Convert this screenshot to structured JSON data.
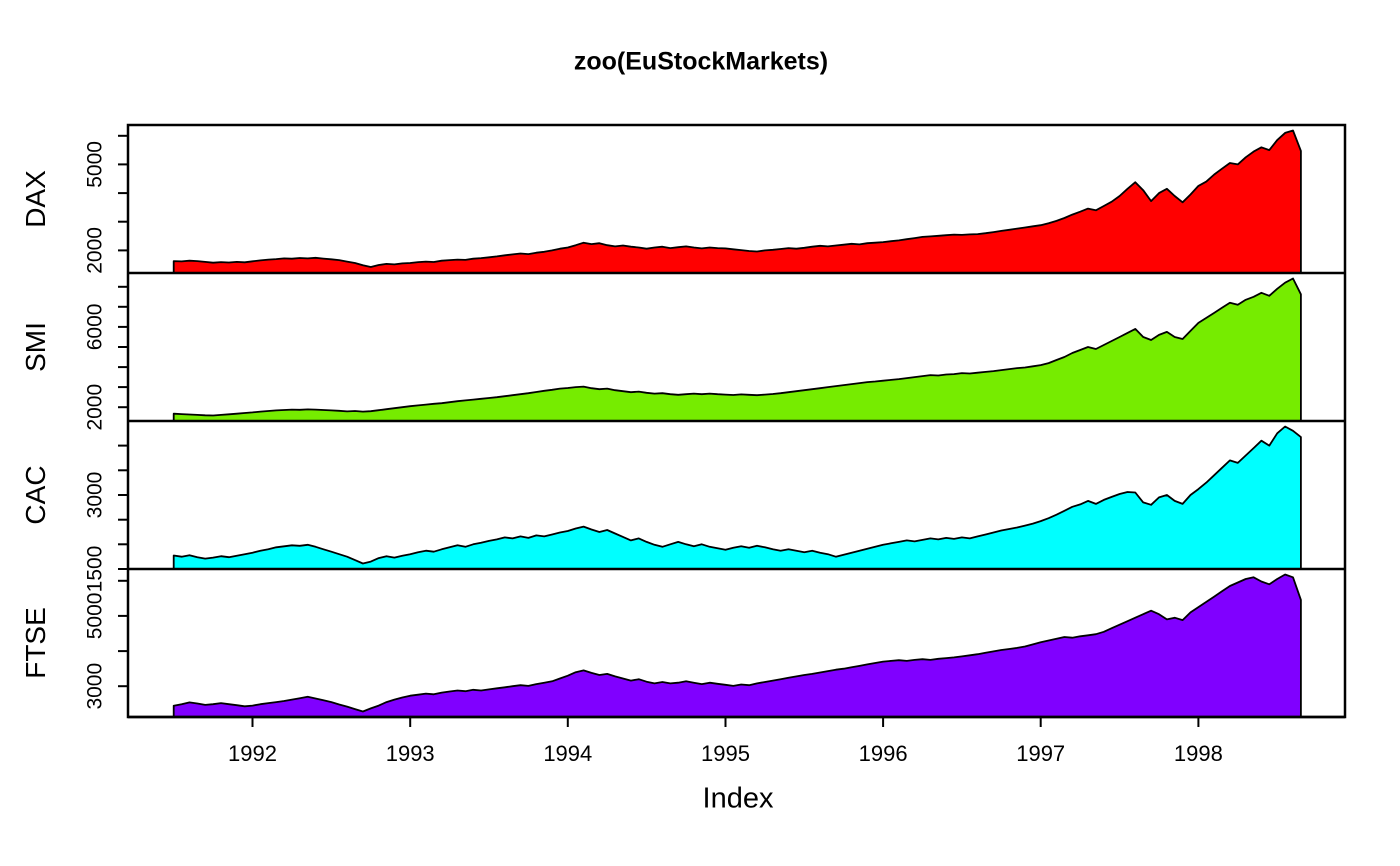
{
  "figure": {
    "title": "zoo(EuStockMarkets)",
    "x_axis_title": "Index",
    "background": "#FFFFFF",
    "line_color": "#000000"
  },
  "chart_data": {
    "type": "area",
    "title": "zoo(EuStockMarkets)",
    "xlabel": "Index",
    "grid": false,
    "legend_position": "none",
    "x_start": 1991.5,
    "x_step": 0.05,
    "xlim": [
      1991.21,
      1998.93
    ],
    "x_ticks": [
      1992,
      1993,
      1994,
      1995,
      1996,
      1997,
      1998
    ],
    "panels": [
      {
        "name": "DAX",
        "color": "#FF0000",
        "ylim": [
          1211,
          6377
        ],
        "yticks": [
          2000,
          3000,
          4000,
          5000,
          6000
        ],
        "ytick_labels_shown": [
          2000,
          5000
        ],
        "values": [
          1628,
          1615,
          1640,
          1625,
          1600,
          1570,
          1590,
          1578,
          1600,
          1585,
          1620,
          1650,
          1680,
          1695,
          1720,
          1710,
          1735,
          1720,
          1740,
          1715,
          1690,
          1660,
          1610,
          1560,
          1480,
          1420,
          1490,
          1530,
          1510,
          1545,
          1560,
          1590,
          1610,
          1595,
          1640,
          1660,
          1680,
          1670,
          1710,
          1730,
          1760,
          1790,
          1830,
          1860,
          1890,
          1870,
          1920,
          1950,
          2000,
          2060,
          2100,
          2180,
          2270,
          2220,
          2250,
          2180,
          2140,
          2170,
          2130,
          2100,
          2060,
          2100,
          2130,
          2080,
          2110,
          2140,
          2100,
          2070,
          2100,
          2080,
          2070,
          2040,
          2010,
          1980,
          1960,
          2000,
          2020,
          2050,
          2080,
          2060,
          2090,
          2130,
          2160,
          2140,
          2170,
          2200,
          2230,
          2210,
          2250,
          2270,
          2290,
          2320,
          2350,
          2390,
          2430,
          2470,
          2490,
          2510,
          2530,
          2550,
          2540,
          2560,
          2570,
          2600,
          2640,
          2680,
          2720,
          2760,
          2800,
          2840,
          2880,
          2950,
          3030,
          3130,
          3250,
          3350,
          3460,
          3400,
          3550,
          3700,
          3900,
          4150,
          4380,
          4100,
          3720,
          4000,
          4150,
          3900,
          3680,
          3950,
          4250,
          4400,
          4650,
          4850,
          5050,
          5000,
          5250,
          5450,
          5600,
          5500,
          5850,
          6100,
          6186,
          5474
        ]
      },
      {
        "name": "SMI",
        "color": "#76EC00",
        "ylim": [
          1314,
          8685
        ],
        "yticks": [
          2000,
          3000,
          4000,
          5000,
          6000,
          7000,
          8000
        ],
        "ytick_labels_shown": [
          2000,
          6000
        ],
        "values": [
          1678,
          1660,
          1640,
          1620,
          1600,
          1590,
          1620,
          1650,
          1680,
          1710,
          1740,
          1780,
          1810,
          1840,
          1860,
          1880,
          1870,
          1890,
          1880,
          1860,
          1840,
          1820,
          1790,
          1810,
          1780,
          1800,
          1850,
          1900,
          1950,
          2000,
          2050,
          2090,
          2130,
          2170,
          2200,
          2250,
          2300,
          2340,
          2380,
          2420,
          2460,
          2500,
          2550,
          2600,
          2650,
          2700,
          2760,
          2820,
          2870,
          2930,
          2960,
          3000,
          3025,
          2950,
          2900,
          2930,
          2850,
          2800,
          2750,
          2780,
          2720,
          2680,
          2700,
          2650,
          2620,
          2650,
          2680,
          2650,
          2680,
          2650,
          2630,
          2610,
          2640,
          2620,
          2600,
          2630,
          2660,
          2700,
          2750,
          2800,
          2850,
          2900,
          2950,
          3000,
          3050,
          3100,
          3150,
          3200,
          3250,
          3280,
          3320,
          3360,
          3400,
          3450,
          3500,
          3550,
          3600,
          3580,
          3630,
          3650,
          3700,
          3680,
          3720,
          3760,
          3800,
          3850,
          3900,
          3950,
          3980,
          4040,
          4100,
          4200,
          4350,
          4500,
          4700,
          4850,
          5000,
          4900,
          5100,
          5300,
          5500,
          5700,
          5900,
          5500,
          5350,
          5600,
          5750,
          5500,
          5400,
          5800,
          6200,
          6450,
          6700,
          6950,
          7200,
          7100,
          7350,
          7500,
          7700,
          7550,
          7900,
          8200,
          8412,
          7625
        ]
      },
      {
        "name": "CAC",
        "color": "#00FFFF",
        "ylim": [
          1500,
          4499
        ],
        "yticks": [
          1500,
          2000,
          2500,
          3000,
          3500,
          4000
        ],
        "ytick_labels_shown": [
          1500,
          3000
        ],
        "values": [
          1773,
          1750,
          1780,
          1740,
          1710,
          1730,
          1760,
          1740,
          1770,
          1800,
          1830,
          1870,
          1900,
          1940,
          1960,
          1980,
          1970,
          1990,
          1950,
          1900,
          1850,
          1800,
          1750,
          1680,
          1611,
          1650,
          1720,
          1760,
          1730,
          1770,
          1800,
          1840,
          1870,
          1850,
          1900,
          1940,
          1980,
          1950,
          2000,
          2030,
          2070,
          2100,
          2140,
          2120,
          2160,
          2130,
          2180,
          2160,
          2200,
          2240,
          2270,
          2320,
          2360,
          2300,
          2250,
          2290,
          2220,
          2150,
          2080,
          2120,
          2050,
          1990,
          1950,
          2000,
          2050,
          2000,
          1960,
          2000,
          1950,
          1920,
          1890,
          1930,
          1960,
          1930,
          1970,
          1940,
          1900,
          1870,
          1900,
          1870,
          1840,
          1870,
          1830,
          1800,
          1750,
          1790,
          1830,
          1870,
          1910,
          1950,
          1990,
          2020,
          2050,
          2080,
          2060,
          2090,
          2120,
          2100,
          2130,
          2110,
          2140,
          2120,
          2160,
          2200,
          2240,
          2280,
          2310,
          2340,
          2380,
          2420,
          2470,
          2530,
          2600,
          2680,
          2760,
          2810,
          2880,
          2820,
          2900,
          2960,
          3020,
          3060,
          3050,
          2850,
          2800,
          2950,
          3000,
          2880,
          2820,
          3000,
          3120,
          3250,
          3400,
          3550,
          3700,
          3650,
          3800,
          3950,
          4100,
          4000,
          4250,
          4388,
          4300,
          4172
        ]
      },
      {
        "name": "FTSE",
        "color": "#8000FF",
        "ylim": [
          2125,
          6335
        ],
        "yticks": [
          3000,
          4000,
          5000,
          6000
        ],
        "ytick_labels_shown": [
          3000,
          5000
        ],
        "values": [
          2444,
          2490,
          2540,
          2510,
          2470,
          2490,
          2520,
          2490,
          2460,
          2430,
          2450,
          2490,
          2520,
          2550,
          2580,
          2620,
          2660,
          2700,
          2650,
          2600,
          2550,
          2480,
          2420,
          2350,
          2281,
          2370,
          2450,
          2550,
          2620,
          2680,
          2730,
          2760,
          2790,
          2770,
          2820,
          2850,
          2880,
          2860,
          2900,
          2880,
          2910,
          2940,
          2970,
          3000,
          3030,
          3010,
          3060,
          3100,
          3140,
          3220,
          3300,
          3400,
          3450,
          3380,
          3320,
          3350,
          3280,
          3220,
          3160,
          3200,
          3130,
          3080,
          3120,
          3080,
          3100,
          3140,
          3100,
          3060,
          3100,
          3070,
          3040,
          3010,
          3050,
          3030,
          3080,
          3120,
          3160,
          3200,
          3240,
          3280,
          3320,
          3350,
          3390,
          3430,
          3470,
          3500,
          3540,
          3580,
          3620,
          3660,
          3700,
          3720,
          3740,
          3720,
          3750,
          3770,
          3750,
          3780,
          3800,
          3820,
          3850,
          3880,
          3910,
          3950,
          3990,
          4030,
          4060,
          4090,
          4130,
          4190,
          4250,
          4300,
          4350,
          4400,
          4380,
          4420,
          4450,
          4480,
          4550,
          4650,
          4750,
          4850,
          4950,
          5050,
          5150,
          5050,
          4900,
          4950,
          4880,
          5100,
          5250,
          5400,
          5550,
          5700,
          5850,
          5950,
          6050,
          6100,
          5980,
          5900,
          6050,
          6179,
          6100,
          5455
        ]
      }
    ]
  }
}
